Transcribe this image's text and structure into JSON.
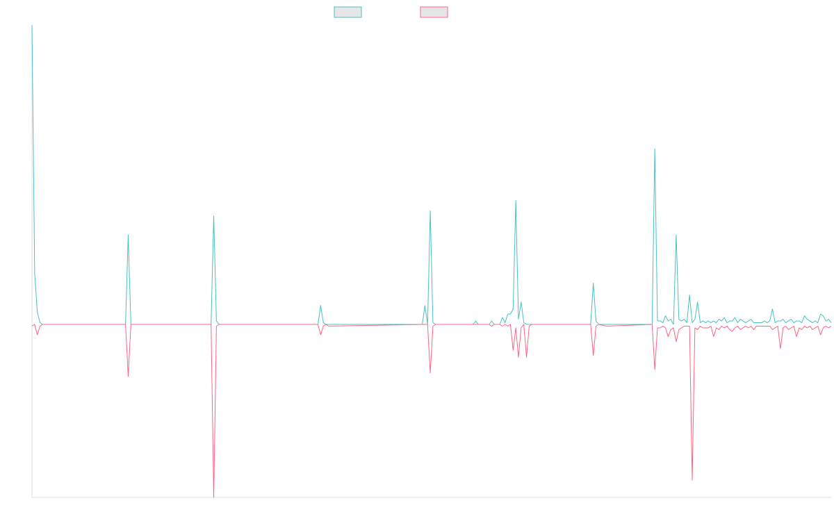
{
  "chart_data": {
    "type": "line",
    "title": "",
    "xlabel": "",
    "ylabel": "",
    "legend": {
      "placement": "top-center",
      "entries": [
        {
          "label": "",
          "color": "#4bc0c0",
          "fill": "#e6e6e6"
        },
        {
          "label": "",
          "color": "#ff6384",
          "fill": "#e6e6e6"
        }
      ]
    },
    "grid": false,
    "ylim": [
      -100,
      174
    ],
    "x_count": 300,
    "series": [
      {
        "name": "",
        "color": "#4bc0c0",
        "points": [
          [
            0,
            174
          ],
          [
            1,
            30
          ],
          [
            2,
            7
          ],
          [
            3,
            1
          ],
          [
            4,
            0
          ],
          [
            35,
            0
          ],
          [
            36,
            52
          ],
          [
            37,
            0
          ],
          [
            67,
            0
          ],
          [
            68,
            63
          ],
          [
            69,
            2
          ],
          [
            70,
            0
          ],
          [
            107,
            0
          ],
          [
            108,
            11
          ],
          [
            109,
            1
          ],
          [
            110,
            0
          ],
          [
            111,
            0
          ],
          [
            146,
            0
          ],
          [
            147,
            11
          ],
          [
            148,
            0
          ],
          [
            149,
            66
          ],
          [
            150,
            1
          ],
          [
            151,
            0
          ],
          [
            165,
            0
          ],
          [
            166,
            2
          ],
          [
            167,
            0
          ],
          [
            171,
            0
          ],
          [
            172,
            2
          ],
          [
            173,
            0
          ],
          [
            175,
            0
          ],
          [
            176,
            4
          ],
          [
            177,
            1
          ],
          [
            178,
            6
          ],
          [
            179,
            6
          ],
          [
            180,
            9
          ],
          [
            181,
            72
          ],
          [
            182,
            3
          ],
          [
            183,
            13
          ],
          [
            184,
            1
          ],
          [
            185,
            0
          ],
          [
            209,
            0
          ],
          [
            210,
            24
          ],
          [
            211,
            2
          ],
          [
            212,
            0
          ],
          [
            232,
            0
          ],
          [
            233,
            102
          ],
          [
            234,
            2
          ],
          [
            235,
            2
          ],
          [
            236,
            1
          ],
          [
            237,
            5
          ],
          [
            238,
            2
          ],
          [
            239,
            3
          ],
          [
            240,
            0
          ],
          [
            241,
            52
          ],
          [
            242,
            3
          ],
          [
            243,
            2
          ],
          [
            244,
            3
          ],
          [
            245,
            1
          ],
          [
            246,
            17
          ],
          [
            247,
            1
          ],
          [
            248,
            3
          ],
          [
            249,
            13
          ],
          [
            250,
            1
          ],
          [
            251,
            2
          ],
          [
            252,
            1
          ],
          [
            253,
            2
          ],
          [
            254,
            1
          ],
          [
            255,
            2
          ],
          [
            256,
            1
          ],
          [
            257,
            3
          ],
          [
            258,
            2
          ],
          [
            259,
            4
          ],
          [
            260,
            1
          ],
          [
            261,
            2
          ],
          [
            262,
            2
          ],
          [
            263,
            4
          ],
          [
            264,
            1
          ],
          [
            265,
            3
          ],
          [
            266,
            2
          ],
          [
            267,
            1
          ],
          [
            268,
            2
          ],
          [
            269,
            3
          ],
          [
            270,
            1
          ],
          [
            271,
            1
          ],
          [
            272,
            1
          ],
          [
            273,
            1
          ],
          [
            274,
            2
          ],
          [
            275,
            1
          ],
          [
            276,
            2
          ],
          [
            277,
            9
          ],
          [
            278,
            1
          ],
          [
            279,
            2
          ],
          [
            280,
            2
          ],
          [
            281,
            3
          ],
          [
            282,
            1
          ],
          [
            283,
            2
          ],
          [
            284,
            3
          ],
          [
            285,
            1
          ],
          [
            286,
            2
          ],
          [
            287,
            2
          ],
          [
            288,
            1
          ],
          [
            289,
            5
          ],
          [
            290,
            3
          ],
          [
            291,
            2
          ],
          [
            292,
            1
          ],
          [
            293,
            2
          ],
          [
            294,
            1
          ],
          [
            295,
            6
          ],
          [
            296,
            5
          ],
          [
            297,
            2
          ],
          [
            298,
            3
          ],
          [
            299,
            1
          ]
        ]
      },
      {
        "name": "",
        "color": "#ff6384",
        "points": [
          [
            0,
            -1
          ],
          [
            1,
            0
          ],
          [
            2,
            -6
          ],
          [
            3,
            -1
          ],
          [
            4,
            0
          ],
          [
            35,
            0
          ],
          [
            36,
            -30
          ],
          [
            37,
            0
          ],
          [
            67,
            0
          ],
          [
            68,
            -100
          ],
          [
            69,
            -1
          ],
          [
            70,
            0
          ],
          [
            107,
            0
          ],
          [
            108,
            -6
          ],
          [
            109,
            -1
          ],
          [
            110,
            0
          ],
          [
            111,
            -1
          ],
          [
            146,
            0
          ],
          [
            147,
            0
          ],
          [
            148,
            0
          ],
          [
            149,
            -28
          ],
          [
            150,
            -1
          ],
          [
            151,
            0
          ],
          [
            165,
            0
          ],
          [
            166,
            0
          ],
          [
            167,
            0
          ],
          [
            171,
            0
          ],
          [
            172,
            -1
          ],
          [
            173,
            0
          ],
          [
            175,
            0
          ],
          [
            176,
            -1
          ],
          [
            177,
            0
          ],
          [
            178,
            -1
          ],
          [
            179,
            0
          ],
          [
            180,
            -15
          ],
          [
            181,
            -2
          ],
          [
            182,
            -19
          ],
          [
            183,
            -2
          ],
          [
            184,
            0
          ],
          [
            185,
            -19
          ],
          [
            186,
            -1
          ],
          [
            187,
            0
          ],
          [
            209,
            0
          ],
          [
            210,
            -18
          ],
          [
            211,
            -1
          ],
          [
            212,
            0
          ],
          [
            215,
            -1
          ],
          [
            232,
            0
          ],
          [
            233,
            -26
          ],
          [
            234,
            -2
          ],
          [
            235,
            -2
          ],
          [
            236,
            -1
          ],
          [
            237,
            -2
          ],
          [
            238,
            -7
          ],
          [
            239,
            -3
          ],
          [
            240,
            -2
          ],
          [
            241,
            -10
          ],
          [
            242,
            -3
          ],
          [
            243,
            -2
          ],
          [
            244,
            -1
          ],
          [
            245,
            -1
          ],
          [
            246,
            -1
          ],
          [
            247,
            -90
          ],
          [
            248,
            -2
          ],
          [
            249,
            -3
          ],
          [
            250,
            -1
          ],
          [
            251,
            -2
          ],
          [
            252,
            -2
          ],
          [
            253,
            -2
          ],
          [
            254,
            -1
          ],
          [
            255,
            -7
          ],
          [
            256,
            -2
          ],
          [
            257,
            -3
          ],
          [
            258,
            -1
          ],
          [
            259,
            -2
          ],
          [
            260,
            -1
          ],
          [
            261,
            -3
          ],
          [
            262,
            -4
          ],
          [
            263,
            -2
          ],
          [
            264,
            -1
          ],
          [
            265,
            -3
          ],
          [
            266,
            -2
          ],
          [
            267,
            -1
          ],
          [
            268,
            -2
          ],
          [
            269,
            -1
          ],
          [
            270,
            -3
          ],
          [
            271,
            -1
          ],
          [
            272,
            -1
          ],
          [
            273,
            -1
          ],
          [
            274,
            -1
          ],
          [
            275,
            -1
          ],
          [
            276,
            -1
          ],
          [
            277,
            -3
          ],
          [
            278,
            -2
          ],
          [
            279,
            -1
          ],
          [
            280,
            -14
          ],
          [
            281,
            -2
          ],
          [
            282,
            -1
          ],
          [
            283,
            -3
          ],
          [
            284,
            -2
          ],
          [
            285,
            -1
          ],
          [
            286,
            -7
          ],
          [
            287,
            -2
          ],
          [
            288,
            -3
          ],
          [
            289,
            -1
          ],
          [
            290,
            -2
          ],
          [
            291,
            -1
          ],
          [
            292,
            -3
          ],
          [
            293,
            -2
          ],
          [
            294,
            -1
          ],
          [
            295,
            -6
          ],
          [
            296,
            -2
          ],
          [
            297,
            -1
          ],
          [
            298,
            -2
          ],
          [
            299,
            -1
          ]
        ]
      }
    ]
  }
}
